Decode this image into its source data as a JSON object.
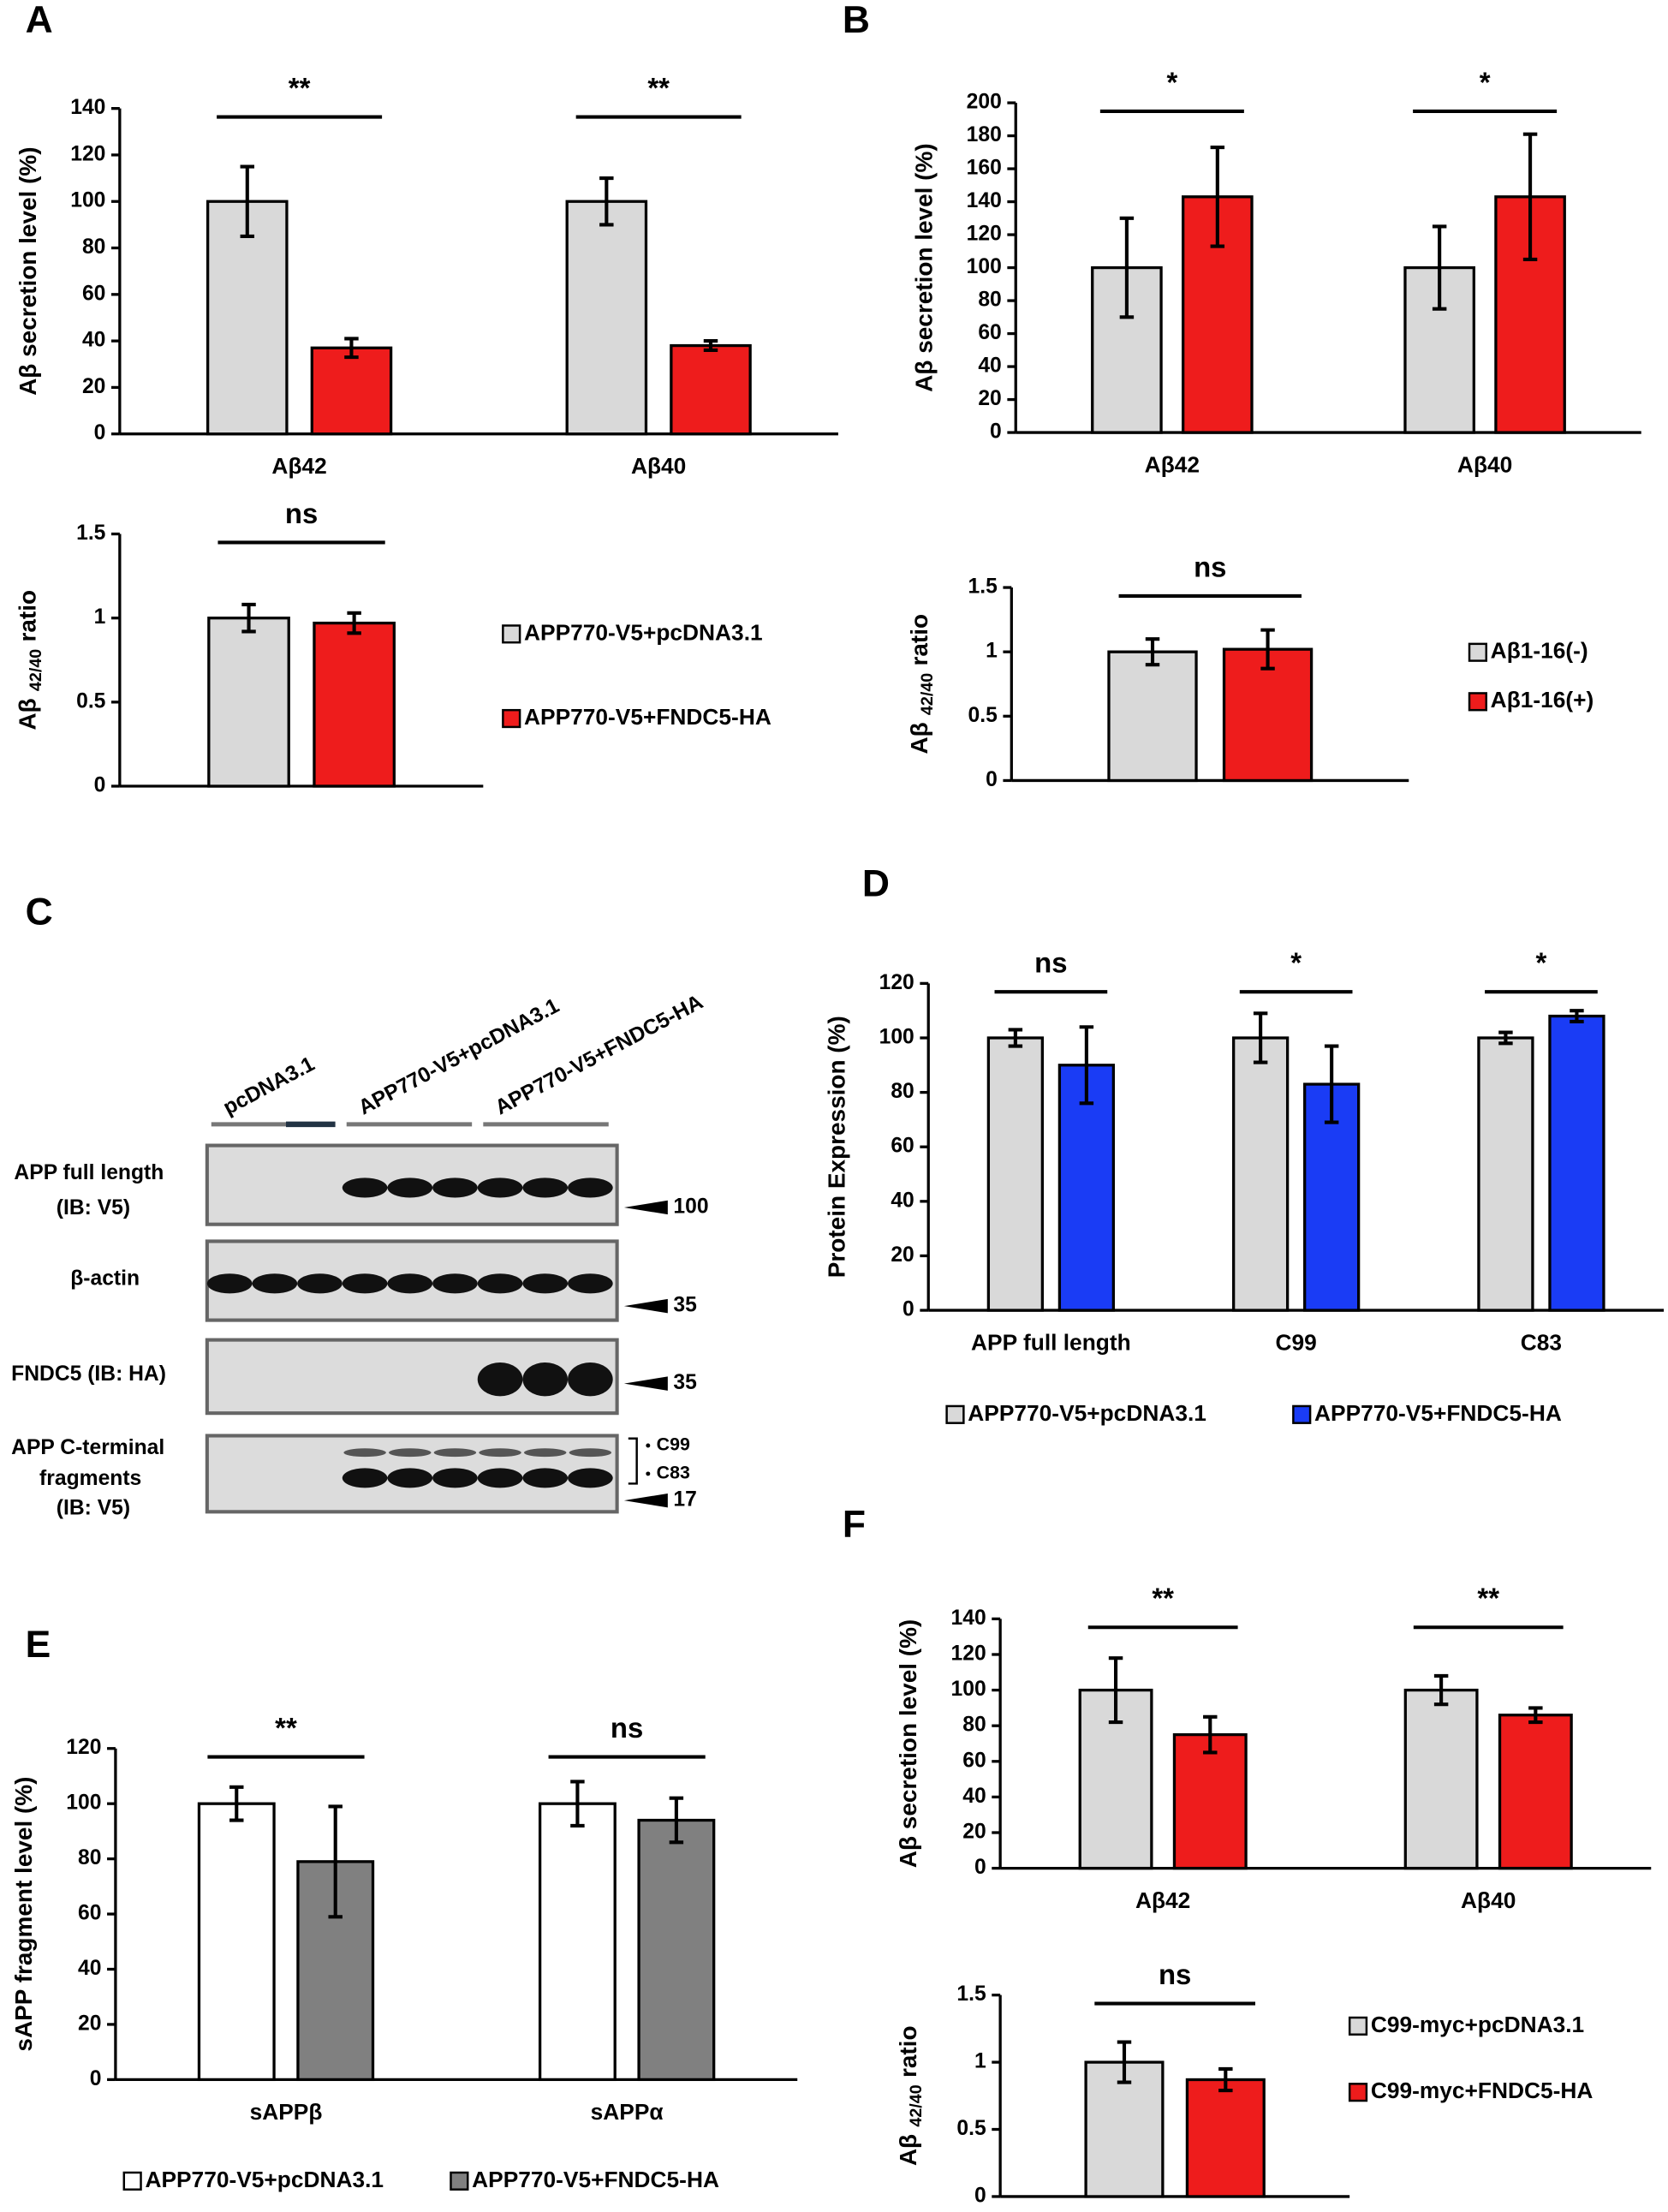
{
  "chart_data": [
    {
      "type": "bar",
      "panel": "A",
      "ylabel": "Aβ secretion level (%)",
      "categories": [
        "Aβ42",
        "Aβ40"
      ],
      "series": [
        {
          "color": "#d9d9d9",
          "values": [
            100,
            100
          ],
          "errors": [
            15,
            10
          ]
        },
        {
          "color": "#ee1c1c",
          "values": [
            37,
            38
          ],
          "errors": [
            4,
            2
          ]
        }
      ],
      "significance": [
        "**",
        "**"
      ],
      "ylim": [
        0,
        140
      ],
      "yticks": [
        0,
        20,
        40,
        60,
        80,
        100,
        120,
        140
      ]
    },
    {
      "type": "bar",
      "ylabel": {
        "main": "Aβ",
        "sub": "42/40",
        "tail": "ratio"
      },
      "categories": [
        null
      ],
      "series": [
        {
          "name": "APP770-V5+pcDNA3.1",
          "color": "#d9d9d9",
          "values": [
            1
          ],
          "errors": [
            0.08
          ]
        },
        {
          "name": "APP770-V5+FNDC5-HA",
          "color": "#ee1c1c",
          "values": [
            0.97
          ],
          "errors": [
            0.06
          ]
        }
      ],
      "significance": [
        "ns"
      ],
      "ylim": [
        0,
        1.5
      ],
      "yticks": [
        0,
        0.5,
        1,
        1.5
      ],
      "legend": "right"
    },
    {
      "type": "bar",
      "panel": "B",
      "ylabel": "Aβ secretion level (%)",
      "categories": [
        "Aβ42",
        "Aβ40"
      ],
      "series": [
        {
          "color": "#d9d9d9",
          "values": [
            100,
            100
          ],
          "errors": [
            30,
            25
          ]
        },
        {
          "color": "#ee1c1c",
          "values": [
            143,
            143
          ],
          "errors": [
            30,
            38
          ]
        }
      ],
      "significance": [
        "*",
        "*"
      ],
      "ylim": [
        0,
        200
      ],
      "yticks": [
        0,
        20,
        40,
        60,
        80,
        100,
        120,
        140,
        160,
        180,
        200
      ]
    },
    {
      "type": "bar",
      "ylabel": {
        "main": "Aβ",
        "sub": "42/40",
        "tail": "ratio"
      },
      "categories": [
        null
      ],
      "series": [
        {
          "name": "Aβ1-16(-)",
          "color": "#d9d9d9",
          "values": [
            1
          ],
          "errors": [
            0.1
          ]
        },
        {
          "name": "Aβ1-16(+)",
          "color": "#ee1c1c",
          "values": [
            1.02
          ],
          "errors": [
            0.15
          ]
        }
      ],
      "significance": [
        "ns"
      ],
      "ylim": [
        0,
        1.5
      ],
      "yticks": [
        0,
        0.5,
        1,
        1.5
      ],
      "legend": "right"
    },
    {
      "type": "bar",
      "panel": "D",
      "ylabel": "Protein Expression (%)",
      "categories": [
        "APP full length",
        "C99",
        "C83"
      ],
      "series": [
        {
          "name": "APP770-V5+pcDNA3.1",
          "color": "#d9d9d9",
          "values": [
            100,
            100,
            100
          ],
          "errors": [
            3,
            9,
            2
          ]
        },
        {
          "name": "APP770-V5+FNDC5-HA",
          "color": "#1a3cf5",
          "values": [
            90,
            83,
            108
          ],
          "errors": [
            14,
            14,
            2
          ]
        }
      ],
      "significance": [
        "ns",
        "*",
        "*"
      ],
      "ylim": [
        0,
        120
      ],
      "yticks": [
        0,
        20,
        40,
        60,
        80,
        100,
        120
      ],
      "legend": "bottom"
    },
    {
      "type": "bar",
      "panel": "E",
      "ylabel": "sAPP fragment level (%)",
      "categories": [
        "sAPPβ",
        "sAPPα"
      ],
      "series": [
        {
          "name": "APP770-V5+pcDNA3.1",
          "color": "#ffffff",
          "values": [
            100,
            100
          ],
          "errors": [
            6,
            8
          ]
        },
        {
          "name": "APP770-V5+FNDC5-HA",
          "color": "#808080",
          "values": [
            79,
            94
          ],
          "errors": [
            20,
            8
          ]
        }
      ],
      "significance": [
        "**",
        "ns"
      ],
      "ylim": [
        0,
        120
      ],
      "yticks": [
        0,
        20,
        40,
        60,
        80,
        100,
        120
      ],
      "legend": "bottom"
    },
    {
      "type": "bar",
      "panel": "F",
      "ylabel": "Aβ secretion level (%)",
      "categories": [
        "Aβ42",
        "Aβ40"
      ],
      "series": [
        {
          "color": "#d9d9d9",
          "values": [
            100,
            100
          ],
          "errors": [
            18,
            8
          ]
        },
        {
          "color": "#ee1c1c",
          "values": [
            75,
            86
          ],
          "errors": [
            10,
            4
          ]
        }
      ],
      "significance": [
        "**",
        "**"
      ],
      "ylim": [
        0,
        140
      ],
      "yticks": [
        0,
        20,
        40,
        60,
        80,
        100,
        120,
        140
      ]
    },
    {
      "type": "bar",
      "ylabel": {
        "main": "Aβ",
        "sub": "42/40",
        "tail": "ratio"
      },
      "categories": [
        null
      ],
      "series": [
        {
          "name": "C99-myc+pcDNA3.1",
          "color": "#d9d9d9",
          "values": [
            1
          ],
          "errors": [
            0.15
          ]
        },
        {
          "name": "C99-myc+FNDC5-HA",
          "color": "#ee1c1c",
          "values": [
            0.87
          ],
          "errors": [
            0.08
          ]
        }
      ],
      "significance": [
        "ns"
      ],
      "ylim": [
        0,
        1.5
      ],
      "yticks": [
        0,
        0.5,
        1,
        1.5
      ],
      "legend": "right"
    }
  ],
  "blot": {
    "panel": "C",
    "lanes": [
      "pcDNA3.1",
      "APP770-V5+pcDNA3.1",
      "APP770-V5+FNDC5-HA"
    ],
    "rows": [
      {
        "label": [
          "APP full length",
          "(IB: V5)"
        ],
        "marker": 100
      },
      {
        "label": [
          "β-actin"
        ],
        "marker": 35
      },
      {
        "label": [
          "FNDC5 (IB: HA)"
        ],
        "marker": 35
      },
      {
        "label": [
          "APP C-terminal",
          "fragments",
          "(IB: V5)"
        ],
        "marker": 17
      }
    ],
    "fragments": [
      "C99",
      "C83"
    ]
  }
}
